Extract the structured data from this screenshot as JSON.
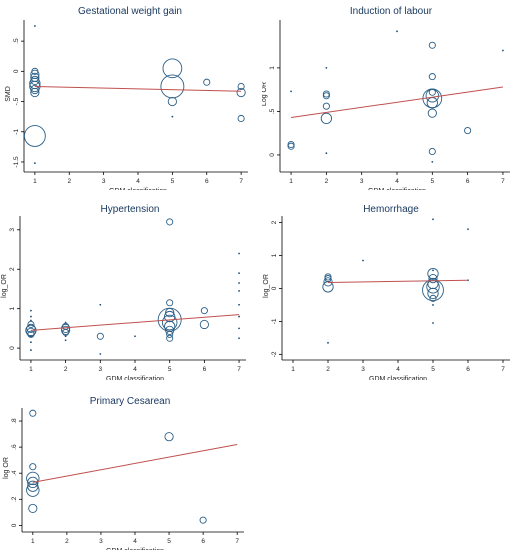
{
  "chart_data": [
    {
      "type": "scatter",
      "title": "Gestational weight gain",
      "xlabel": "GDM classification",
      "ylabel": "SMD",
      "xlim": [
        0.8,
        7.2
      ],
      "ylim": [
        -1.6,
        0.85
      ],
      "xticks": [
        1,
        2,
        3,
        4,
        5,
        6,
        7
      ],
      "yticks": [
        -1.5,
        -1,
        -0.5,
        0,
        0.5
      ],
      "ytick_labels": [
        "-1.5",
        "-1",
        "-.5",
        "0",
        ".5"
      ],
      "points": [
        {
          "x": 1,
          "y": 0.75,
          "w": 1
        },
        {
          "x": 1,
          "y": 0.0,
          "w": 2
        },
        {
          "x": 1,
          "y": -0.05,
          "w": 3
        },
        {
          "x": 1,
          "y": -0.1,
          "w": 3
        },
        {
          "x": 1,
          "y": -0.15,
          "w": 3
        },
        {
          "x": 1,
          "y": -0.2,
          "w": 4
        },
        {
          "x": 1,
          "y": -0.25,
          "w": 4
        },
        {
          "x": 1,
          "y": -0.3,
          "w": 3
        },
        {
          "x": 1,
          "y": -0.35,
          "w": 3
        },
        {
          "x": 1,
          "y": -1.07,
          "w": 9
        },
        {
          "x": 1,
          "y": -1.52,
          "w": 1
        },
        {
          "x": 5,
          "y": 0.05,
          "w": 8
        },
        {
          "x": 5,
          "y": -0.25,
          "w": 10
        },
        {
          "x": 5,
          "y": -0.5,
          "w": 3
        },
        {
          "x": 5,
          "y": -0.75,
          "w": 1
        },
        {
          "x": 6,
          "y": -0.18,
          "w": 2
        },
        {
          "x": 7,
          "y": -0.25,
          "w": 2
        },
        {
          "x": 7,
          "y": -0.35,
          "w": 3
        },
        {
          "x": 7,
          "y": -0.78,
          "w": 2
        }
      ],
      "fit": [
        [
          1,
          -0.25
        ],
        [
          7,
          -0.33
        ]
      ]
    },
    {
      "type": "scatter",
      "title": "Induction of labour",
      "xlabel": "GDM classification",
      "ylabel": "Log OR",
      "xlim": [
        0.8,
        7.2
      ],
      "ylim": [
        -0.15,
        1.55
      ],
      "xticks": [
        1,
        2,
        3,
        4,
        5,
        6,
        7
      ],
      "yticks": [
        0,
        0.5,
        1
      ],
      "ytick_labels": [
        "0",
        ".5",
        "1"
      ],
      "points": [
        {
          "x": 1,
          "y": 0.73,
          "w": 1
        },
        {
          "x": 1,
          "y": 0.12,
          "w": 2
        },
        {
          "x": 1,
          "y": 0.1,
          "w": 2
        },
        {
          "x": 2,
          "y": 1.0,
          "w": 1
        },
        {
          "x": 2,
          "y": 0.7,
          "w": 2
        },
        {
          "x": 2,
          "y": 0.68,
          "w": 2
        },
        {
          "x": 2,
          "y": 0.56,
          "w": 2
        },
        {
          "x": 2,
          "y": 0.42,
          "w": 4
        },
        {
          "x": 2,
          "y": 0.02,
          "w": 1
        },
        {
          "x": 4,
          "y": 1.42,
          "w": 1
        },
        {
          "x": 5,
          "y": 1.26,
          "w": 2
        },
        {
          "x": 5,
          "y": 0.9,
          "w": 2
        },
        {
          "x": 5,
          "y": 0.72,
          "w": 2
        },
        {
          "x": 5,
          "y": 0.68,
          "w": 5
        },
        {
          "x": 5,
          "y": 0.65,
          "w": 8
        },
        {
          "x": 5,
          "y": 0.6,
          "w": 4
        },
        {
          "x": 5,
          "y": 0.48,
          "w": 3
        },
        {
          "x": 5,
          "y": 0.04,
          "w": 2
        },
        {
          "x": 5,
          "y": -0.08,
          "w": 1
        },
        {
          "x": 6,
          "y": 0.28,
          "w": 2
        },
        {
          "x": 7,
          "y": 1.2,
          "w": 1
        }
      ],
      "fit": [
        [
          1,
          0.43
        ],
        [
          7,
          0.78
        ]
      ]
    },
    {
      "type": "scatter",
      "title": "Hypertension",
      "xlabel": "GDM classification",
      "ylabel": "log_OR",
      "xlim": [
        0.8,
        7.2
      ],
      "ylim": [
        -0.2,
        3.35
      ],
      "xticks": [
        1,
        2,
        3,
        4,
        5,
        6,
        7
      ],
      "yticks": [
        0,
        1,
        2,
        3
      ],
      "ytick_labels": [
        "0",
        "1",
        "2",
        "3"
      ],
      "points": [
        {
          "x": 1,
          "y": 0.95,
          "w": 1
        },
        {
          "x": 1,
          "y": 0.8,
          "w": 1
        },
        {
          "x": 1,
          "y": 0.7,
          "w": 1
        },
        {
          "x": 1,
          "y": 0.6,
          "w": 2
        },
        {
          "x": 1,
          "y": 0.5,
          "w": 3
        },
        {
          "x": 1,
          "y": 0.45,
          "w": 4
        },
        {
          "x": 1,
          "y": 0.4,
          "w": 3
        },
        {
          "x": 1,
          "y": 0.35,
          "w": 2
        },
        {
          "x": 1,
          "y": 0.3,
          "w": 1
        },
        {
          "x": 1,
          "y": 0.15,
          "w": 1
        },
        {
          "x": 1,
          "y": -0.05,
          "w": 1
        },
        {
          "x": 2,
          "y": 0.65,
          "w": 1
        },
        {
          "x": 2,
          "y": 0.55,
          "w": 2
        },
        {
          "x": 2,
          "y": 0.5,
          "w": 3
        },
        {
          "x": 2,
          "y": 0.45,
          "w": 3
        },
        {
          "x": 2,
          "y": 0.4,
          "w": 2
        },
        {
          "x": 2,
          "y": 0.3,
          "w": 1
        },
        {
          "x": 2,
          "y": 0.2,
          "w": 1
        },
        {
          "x": 3,
          "y": 1.1,
          "w": 1
        },
        {
          "x": 3,
          "y": 0.3,
          "w": 2
        },
        {
          "x": 3,
          "y": -0.15,
          "w": 1
        },
        {
          "x": 4,
          "y": 0.3,
          "w": 1
        },
        {
          "x": 5,
          "y": 3.2,
          "w": 2
        },
        {
          "x": 5,
          "y": 1.15,
          "w": 2
        },
        {
          "x": 5,
          "y": 0.9,
          "w": 3
        },
        {
          "x": 5,
          "y": 0.8,
          "w": 4
        },
        {
          "x": 5,
          "y": 0.72,
          "w": 10
        },
        {
          "x": 5,
          "y": 0.65,
          "w": 6
        },
        {
          "x": 5,
          "y": 0.55,
          "w": 4
        },
        {
          "x": 5,
          "y": 0.45,
          "w": 3
        },
        {
          "x": 5,
          "y": 0.35,
          "w": 2
        },
        {
          "x": 5,
          "y": 0.25,
          "w": 2
        },
        {
          "x": 6,
          "y": 0.95,
          "w": 2
        },
        {
          "x": 6,
          "y": 0.6,
          "w": 3
        },
        {
          "x": 7,
          "y": 2.4,
          "w": 1
        },
        {
          "x": 7,
          "y": 1.9,
          "w": 1
        },
        {
          "x": 7,
          "y": 1.65,
          "w": 1
        },
        {
          "x": 7,
          "y": 1.45,
          "w": 1
        },
        {
          "x": 7,
          "y": 1.1,
          "w": 1
        },
        {
          "x": 7,
          "y": 0.8,
          "w": 1
        },
        {
          "x": 7,
          "y": 0.5,
          "w": 1
        },
        {
          "x": 7,
          "y": 0.25,
          "w": 1
        }
      ],
      "fit": [
        [
          1,
          0.45
        ],
        [
          7,
          0.85
        ]
      ]
    },
    {
      "type": "scatter",
      "title": "Hemorrhage",
      "xlabel": "GDM classification",
      "ylabel": "log_OR",
      "xlim": [
        0.8,
        7.2
      ],
      "ylim": [
        -2.05,
        2.2
      ],
      "xticks": [
        1,
        2,
        3,
        4,
        5,
        6,
        7
      ],
      "yticks": [
        -2,
        -1,
        0,
        1,
        2
      ],
      "ytick_labels": [
        "-2",
        "-1",
        "0",
        "1",
        "2"
      ],
      "points": [
        {
          "x": 2,
          "y": 0.35,
          "w": 2
        },
        {
          "x": 2,
          "y": 0.3,
          "w": 2
        },
        {
          "x": 2,
          "y": 0.2,
          "w": 3
        },
        {
          "x": 2,
          "y": 0.05,
          "w": 4
        },
        {
          "x": 2,
          "y": -1.65,
          "w": 1
        },
        {
          "x": 3,
          "y": 0.85,
          "w": 1
        },
        {
          "x": 5,
          "y": 2.1,
          "w": 1
        },
        {
          "x": 5,
          "y": 0.55,
          "w": 1
        },
        {
          "x": 5,
          "y": 0.45,
          "w": 4
        },
        {
          "x": 5,
          "y": 0.3,
          "w": 3
        },
        {
          "x": 5,
          "y": 0.15,
          "w": 4
        },
        {
          "x": 5,
          "y": 0.05,
          "w": 5
        },
        {
          "x": 5,
          "y": -0.05,
          "w": 9
        },
        {
          "x": 5,
          "y": -0.15,
          "w": 4
        },
        {
          "x": 5,
          "y": -0.3,
          "w": 2
        },
        {
          "x": 5,
          "y": -0.5,
          "w": 1
        },
        {
          "x": 5,
          "y": -1.05,
          "w": 1
        },
        {
          "x": 6,
          "y": 1.8,
          "w": 1
        },
        {
          "x": 6,
          "y": 0.25,
          "w": 1
        }
      ],
      "fit": [
        [
          2,
          0.18
        ],
        [
          6,
          0.25
        ]
      ]
    },
    {
      "type": "scatter",
      "title": "Primary Cesarean",
      "xlabel": "GDM classification",
      "ylabel": "log OR",
      "xlim": [
        0.8,
        7.2
      ],
      "ylim": [
        -0.02,
        0.9
      ],
      "xticks": [
        1,
        2,
        3,
        4,
        5,
        6,
        7
      ],
      "yticks": [
        0,
        0.2,
        0.4,
        0.6,
        0.8
      ],
      "ytick_labels": [
        "0",
        ".2",
        ".4",
        ".6",
        ".8"
      ],
      "points": [
        {
          "x": 1,
          "y": 0.86,
          "w": 2
        },
        {
          "x": 1,
          "y": 0.45,
          "w": 2
        },
        {
          "x": 1,
          "y": 0.36,
          "w": 5
        },
        {
          "x": 1,
          "y": 0.33,
          "w": 4
        },
        {
          "x": 1,
          "y": 0.3,
          "w": 4
        },
        {
          "x": 1,
          "y": 0.27,
          "w": 5
        },
        {
          "x": 1,
          "y": 0.13,
          "w": 3
        },
        {
          "x": 5,
          "y": 0.68,
          "w": 3
        },
        {
          "x": 6,
          "y": 0.04,
          "w": 2
        }
      ],
      "fit": [
        [
          1,
          0.33
        ],
        [
          7,
          0.62
        ]
      ]
    }
  ]
}
